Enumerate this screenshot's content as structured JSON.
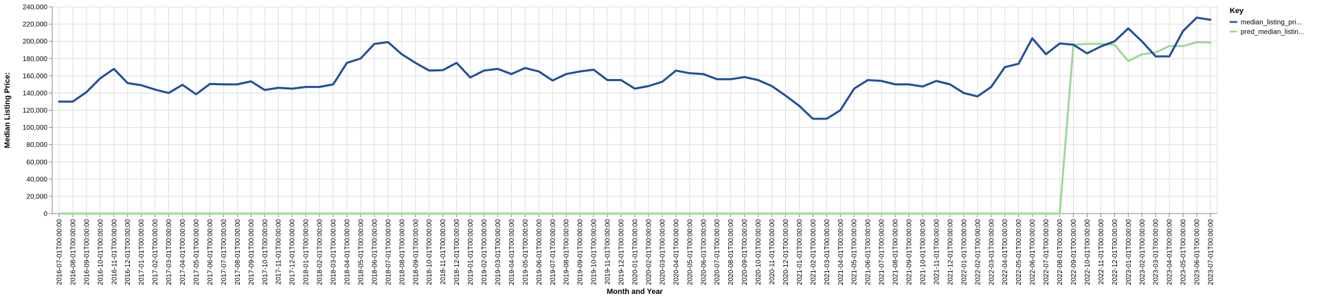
{
  "chart_data": {
    "type": "line",
    "xlabel": "Month and Year",
    "ylabel": "Median Listing Price:",
    "ylim": [
      0,
      240000
    ],
    "yticks": [
      0,
      20000,
      40000,
      60000,
      80000,
      100000,
      120000,
      140000,
      160000,
      180000,
      200000,
      220000,
      240000
    ],
    "ytick_labels": [
      "0",
      "20,000",
      "40,000",
      "60,000",
      "80,000",
      "100,000",
      "120,000",
      "140,000",
      "160,000",
      "180,000",
      "200,000",
      "220,000",
      "240,000"
    ],
    "grid": true,
    "legend": {
      "title": "Key",
      "position": "right"
    },
    "x": [
      "2016-07-01T00:00:00",
      "2016-08-01T00:00:00",
      "2016-09-01T00:00:00",
      "2016-10-01T00:00:00",
      "2016-11-01T00:00:00",
      "2016-12-01T00:00:00",
      "2017-01-01T00:00:00",
      "2017-02-01T00:00:00",
      "2017-03-01T00:00:00",
      "2017-04-01T00:00:00",
      "2017-05-01T00:00:00",
      "2017-06-01T00:00:00",
      "2017-07-01T00:00:00",
      "2017-08-01T00:00:00",
      "2017-09-01T00:00:00",
      "2017-10-01T00:00:00",
      "2017-11-01T00:00:00",
      "2017-12-01T00:00:00",
      "2018-01-01T00:00:00",
      "2018-02-01T00:00:00",
      "2018-03-01T00:00:00",
      "2018-04-01T00:00:00",
      "2018-05-01T00:00:00",
      "2018-06-01T00:00:00",
      "2018-07-01T00:00:00",
      "2018-08-01T00:00:00",
      "2018-09-01T00:00:00",
      "2018-10-01T00:00:00",
      "2018-11-01T00:00:00",
      "2018-12-01T00:00:00",
      "2019-01-01T00:00:00",
      "2019-02-01T00:00:00",
      "2019-03-01T00:00:00",
      "2019-04-01T00:00:00",
      "2019-05-01T00:00:00",
      "2019-06-01T00:00:00",
      "2019-07-01T00:00:00",
      "2019-08-01T00:00:00",
      "2019-09-01T00:00:00",
      "2019-10-01T00:00:00",
      "2019-11-01T00:00:00",
      "2019-12-01T00:00:00",
      "2020-01-01T00:00:00",
      "2020-02-01T00:00:00",
      "2020-03-01T00:00:00",
      "2020-04-01T00:00:00",
      "2020-05-01T00:00:00",
      "2020-06-01T00:00:00",
      "2020-07-01T00:00:00",
      "2020-08-01T00:00:00",
      "2020-09-01T00:00:00",
      "2020-10-01T00:00:00",
      "2020-11-01T00:00:00",
      "2020-12-01T00:00:00",
      "2021-01-01T00:00:00",
      "2021-02-01T00:00:00",
      "2021-03-01T00:00:00",
      "2021-04-01T00:00:00",
      "2021-05-01T00:00:00",
      "2021-06-01T00:00:00",
      "2021-07-01T00:00:00",
      "2021-08-01T00:00:00",
      "2021-09-01T00:00:00",
      "2021-10-01T00:00:00",
      "2021-11-01T00:00:00",
      "2021-12-01T00:00:00",
      "2022-01-01T00:00:00",
      "2022-02-01T00:00:00",
      "2022-03-01T00:00:00",
      "2022-04-01T00:00:00",
      "2022-05-01T00:00:00",
      "2022-06-01T00:00:00",
      "2022-07-01T00:00:00",
      "2022-08-01T00:00:00",
      "2022-09-01T00:00:00",
      "2022-10-01T00:00:00",
      "2022-11-01T00:00:00",
      "2022-12-01T00:00:00",
      "2023-01-01T00:00:00",
      "2023-02-01T00:00:00",
      "2023-03-01T00:00:00",
      "2023-04-01T00:00:00",
      "2023-05-01T00:00:00",
      "2023-06-01T00:00:00",
      "2023-07-01T00:00:00"
    ],
    "series": [
      {
        "name": "median_listing_pri...",
        "color": "#1f4e9c",
        "values": [
          130000,
          130000,
          141000,
          157000,
          168000,
          151500,
          149000,
          144000,
          140000,
          149500,
          138500,
          150500,
          150000,
          150000,
          153500,
          143500,
          146000,
          145000,
          147000,
          147000,
          150000,
          175000,
          180000,
          197000,
          199000,
          185000,
          175000,
          166000,
          166500,
          175000,
          158000,
          166000,
          168000,
          162000,
          169000,
          165000,
          154500,
          162000,
          165000,
          167000,
          155000,
          155000,
          145000,
          148000,
          153000,
          166000,
          163000,
          162000,
          156000,
          156000,
          158500,
          155000,
          148000,
          137000,
          125000,
          110000,
          110000,
          120000,
          145000,
          155000,
          154000,
          150000,
          150000,
          147500,
          154000,
          150000,
          140000,
          136000,
          147000,
          170000,
          174000,
          203500,
          185000,
          197500,
          196000,
          186000,
          194000,
          200000,
          215000,
          200000,
          182500,
          182500,
          212000,
          227500,
          225000
        ]
      },
      {
        "name": "pred_median_listin...",
        "color": "#9fd89a",
        "values": [
          0,
          0,
          0,
          0,
          0,
          0,
          0,
          0,
          0,
          0,
          0,
          0,
          0,
          0,
          0,
          0,
          0,
          0,
          0,
          0,
          0,
          0,
          0,
          0,
          0,
          0,
          0,
          0,
          0,
          0,
          0,
          0,
          0,
          0,
          0,
          0,
          0,
          0,
          0,
          0,
          0,
          0,
          0,
          0,
          0,
          0,
          0,
          0,
          0,
          0,
          0,
          0,
          0,
          0,
          0,
          0,
          0,
          0,
          0,
          0,
          0,
          0,
          0,
          0,
          0,
          0,
          0,
          0,
          0,
          0,
          0,
          0,
          0,
          0,
          196000,
          197000,
          197000,
          196000,
          177000,
          185000,
          187000,
          194500,
          194500,
          199000,
          198500
        ]
      }
    ]
  }
}
